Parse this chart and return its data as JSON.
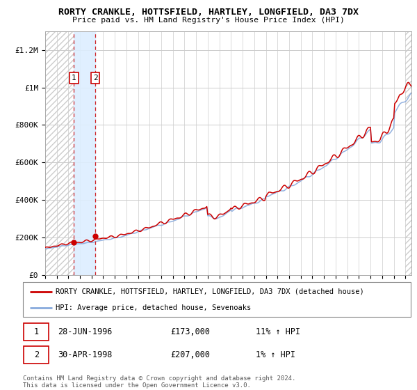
{
  "title": "RORTY CRANKLE, HOTTSFIELD, HARTLEY, LONGFIELD, DA3 7DX",
  "subtitle": "Price paid vs. HM Land Registry's House Price Index (HPI)",
  "ylabel_ticks": [
    "£0",
    "£200K",
    "£400K",
    "£600K",
    "£800K",
    "£1M",
    "£1.2M"
  ],
  "ytick_values": [
    0,
    200000,
    400000,
    600000,
    800000,
    1000000,
    1200000
  ],
  "ylim": [
    0,
    1300000
  ],
  "xlim_start": 1994.0,
  "xlim_end": 2025.5,
  "legend_line1": "RORTY CRANKLE, HOTTSFIELD, HARTLEY, LONGFIELD, DA3 7DX (detached house)",
  "legend_line2": "HPI: Average price, detached house, Sevenoaks",
  "point1_date": "28-JUN-1996",
  "point1_price": "£173,000",
  "point1_hpi": "11% ↑ HPI",
  "point1_x": 1996.49,
  "point1_y": 173000,
  "point2_date": "30-APR-1998",
  "point2_price": "£207,000",
  "point2_hpi": "1% ↑ HPI",
  "point2_x": 1998.33,
  "point2_y": 207000,
  "copyright_text": "Contains HM Land Registry data © Crown copyright and database right 2024.\nThis data is licensed under the Open Government Licence v3.0.",
  "line_color_red": "#cc0000",
  "line_color_blue": "#88aadd",
  "grid_color": "#cccccc",
  "highlight_box_color": "#ddeeff",
  "hatch_color": "#cccccc",
  "fig_bg": "#ffffff"
}
